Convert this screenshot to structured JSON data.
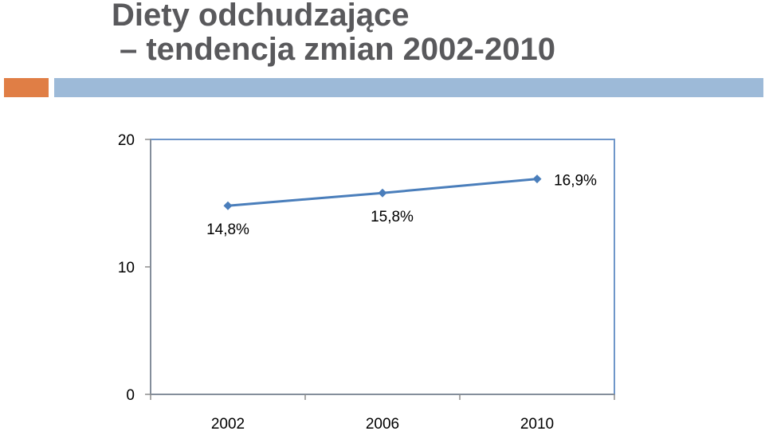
{
  "slide": {
    "title_line1": "Diety odchudzające",
    "title_line2": "– tendencja zmian 2002-2010"
  },
  "colors": {
    "title": "#59595c",
    "accent_orange": "#e07e45",
    "accent_blue": "#9dbad8",
    "series": "#4a7ebb",
    "frame": "#6f96c9",
    "axis": "#8c8c8c"
  },
  "chart_data": {
    "type": "line",
    "categories": [
      "2002",
      "2006",
      "2010"
    ],
    "series": [
      {
        "values": [
          14.8,
          15.8,
          16.9
        ],
        "labels": [
          "14,8%",
          "15,8%",
          "16,9%"
        ]
      }
    ],
    "yticks": [
      "0",
      "10",
      "20"
    ],
    "ylim": [
      0,
      20
    ],
    "grid": false,
    "legend": "none",
    "marker": "diamond"
  }
}
